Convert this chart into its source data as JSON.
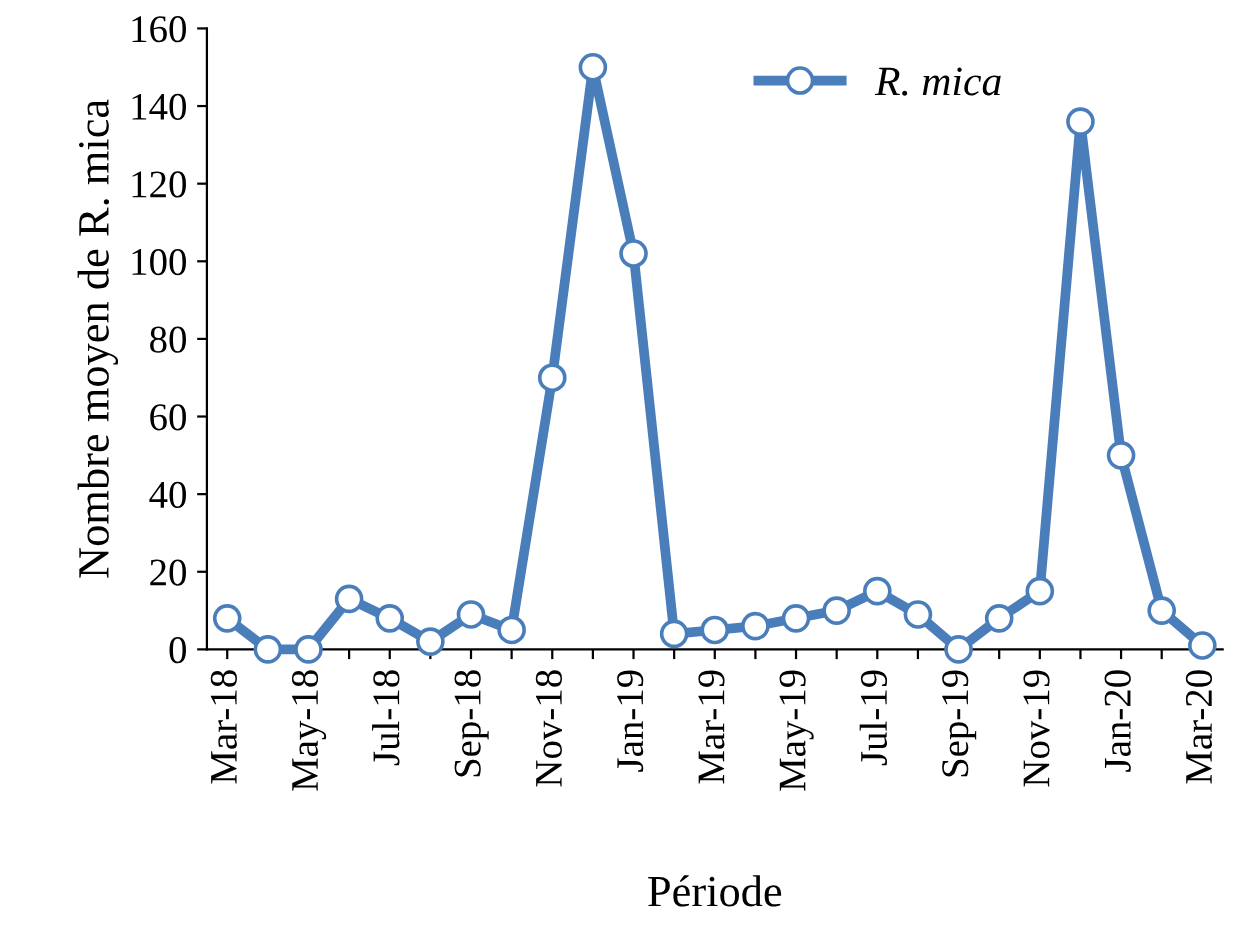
{
  "chart_data": {
    "type": "line",
    "xlabel": "Période",
    "ylabel": "Nombre moyen de R. mica",
    "categories": [
      "Mar-18",
      null,
      "May-18",
      null,
      "Jul-18",
      null,
      "Sep-18",
      null,
      "Nov-18",
      null,
      "Jan-19",
      null,
      "Mar-19",
      null,
      "May-19",
      null,
      "Jul-19",
      null,
      "Sep-19",
      null,
      "Nov-19",
      null,
      "Jan-20",
      null,
      "Mar-20"
    ],
    "series": [
      {
        "name": "R. mica",
        "color": "#4a7ebb",
        "values": [
          8,
          0,
          0,
          13,
          8,
          2,
          9,
          5,
          70,
          150,
          102,
          4,
          5,
          6,
          8,
          10,
          15,
          9,
          0,
          8,
          15,
          136,
          50,
          10,
          1
        ]
      }
    ],
    "ylim": [
      0,
      160
    ],
    "yticks": [
      0,
      20,
      40,
      60,
      80,
      100,
      120,
      140,
      160
    ],
    "grid": false,
    "legend": "top right",
    "marker": "circle",
    "line_style": "solid"
  }
}
